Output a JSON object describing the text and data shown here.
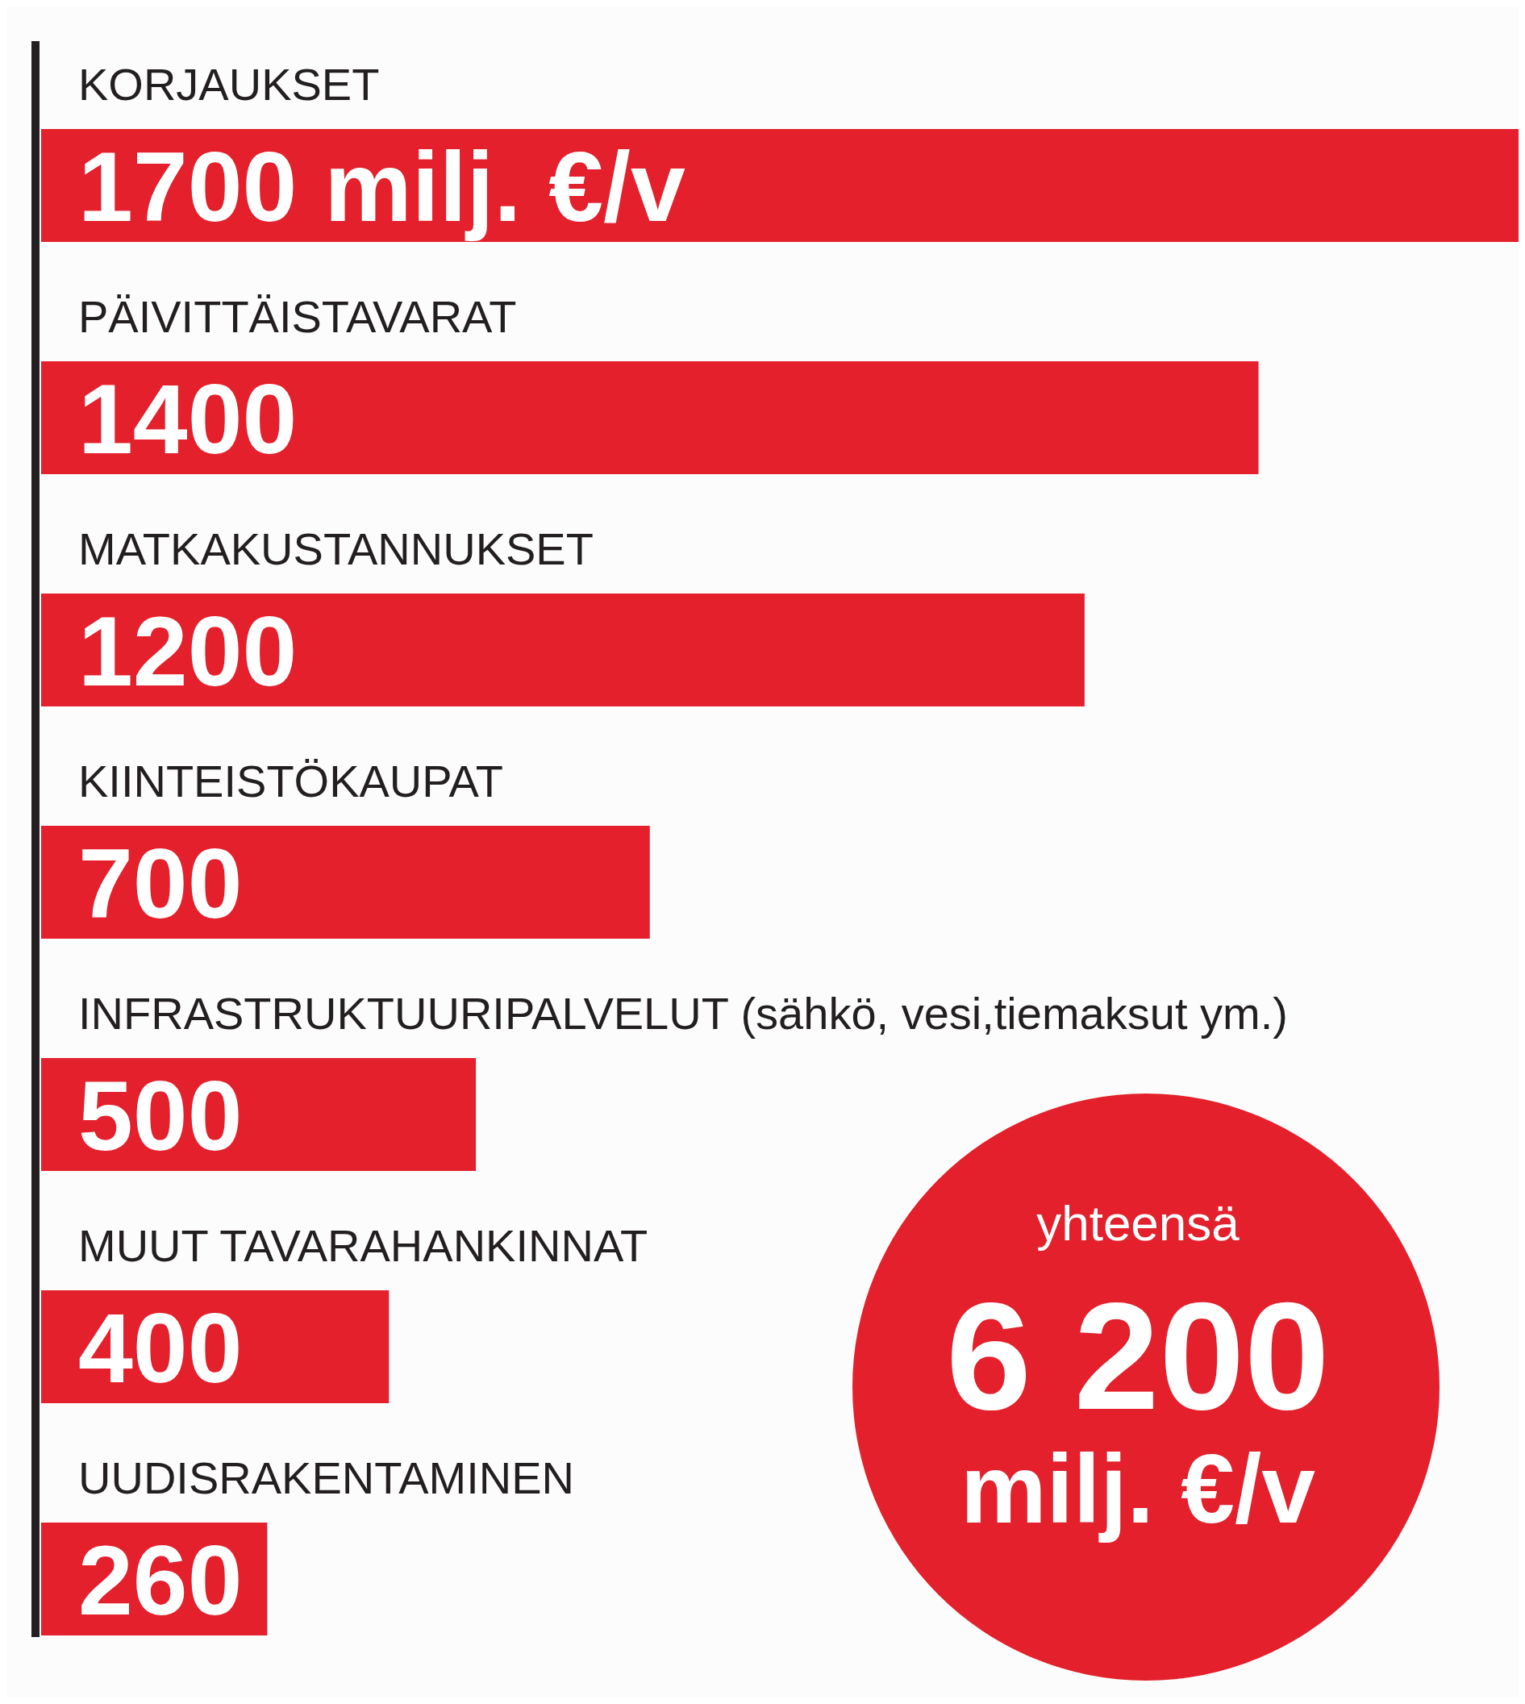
{
  "chart_data": {
    "type": "bar",
    "orientation": "horizontal",
    "categories": [
      "KORJAUKSET",
      "PÄIVITTÄISTAVARAT",
      "MATKAKUSTANNUKSET",
      "KIINTEISTÖKAUPAT",
      "INFRASTRUKTUURIPALVELUT (sähkö, vesi,tiemaksut ym.)",
      "MUUT TAVARAHANKINNAT",
      "UUDISRAKENTAMINEN"
    ],
    "values": [
      1700,
      1400,
      1200,
      700,
      500,
      400,
      260
    ],
    "value_labels": [
      "1700 milj. €/v",
      "1400",
      "1200",
      "700",
      "500",
      "400",
      "260"
    ],
    "color": "#e3202b",
    "annotations": [
      "yhteensä",
      "6 200",
      "milj. €/v"
    ]
  }
}
